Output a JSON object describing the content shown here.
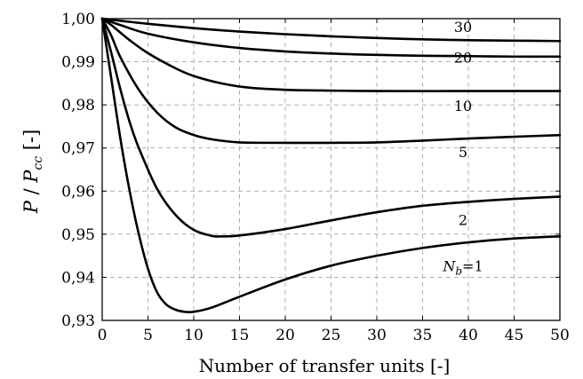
{
  "chart_data": {
    "type": "line",
    "xlabel": "Number of transfer units [-]",
    "ylabel": {
      "main": "P",
      "sep": " / ",
      "sub_base": "P",
      "sub": "cc",
      "unit": " [-]"
    },
    "xlim": [
      0,
      50
    ],
    "ylim": [
      0.93,
      1.0
    ],
    "x_ticks": [
      0,
      5,
      10,
      15,
      20,
      25,
      30,
      35,
      40,
      45,
      50
    ],
    "y_ticks": [
      0.93,
      0.94,
      0.95,
      0.96,
      0.97,
      0.98,
      0.99,
      1.0
    ],
    "y_tick_labels": [
      "0,93",
      "0,94",
      "0,95",
      "0,96",
      "0,97",
      "0,98",
      "0,99",
      "1,00"
    ],
    "grid": true,
    "series": [
      {
        "name": "30",
        "x": [
          0,
          2,
          5,
          10,
          15,
          20,
          25,
          30,
          35,
          40,
          45,
          50
        ],
        "y": [
          1.0,
          0.9995,
          0.9988,
          0.9978,
          0.997,
          0.9964,
          0.9959,
          0.9955,
          0.9952,
          0.995,
          0.9949,
          0.9948
        ]
      },
      {
        "name": "20",
        "x": [
          0,
          2,
          5,
          10,
          15,
          20,
          25,
          30,
          35,
          40,
          45,
          50
        ],
        "y": [
          1.0,
          0.9985,
          0.9965,
          0.9945,
          0.9932,
          0.9924,
          0.9919,
          0.9916,
          0.9914,
          0.9913,
          0.9912,
          0.9912
        ]
      },
      {
        "name": "10",
        "x": [
          0,
          1,
          3,
          5,
          8,
          10,
          13,
          16,
          20,
          25,
          30,
          40,
          50
        ],
        "y": [
          1.0,
          0.9985,
          0.995,
          0.992,
          0.9885,
          0.9867,
          0.985,
          0.984,
          0.9835,
          0.9833,
          0.9832,
          0.9832,
          0.9832
        ]
      },
      {
        "name": "5",
        "x": [
          0,
          1,
          2,
          4,
          6,
          8,
          10,
          12,
          15,
          20,
          25,
          30,
          35,
          40,
          45,
          50
        ],
        "y": [
          1.0,
          0.996,
          0.991,
          0.9835,
          0.9782,
          0.9748,
          0.973,
          0.972,
          0.9713,
          0.9712,
          0.9712,
          0.9713,
          0.9717,
          0.9722,
          0.9726,
          0.973
        ]
      },
      {
        "name": "2",
        "x": [
          0,
          1,
          2,
          3,
          4,
          6,
          8,
          10,
          12,
          13,
          15,
          20,
          25,
          30,
          35,
          40,
          45,
          50
        ],
        "y": [
          1.0,
          0.992,
          0.9835,
          0.976,
          0.97,
          0.9605,
          0.9545,
          0.951,
          0.9496,
          0.9495,
          0.9497,
          0.9512,
          0.9532,
          0.9551,
          0.9566,
          0.9575,
          0.9582,
          0.9587
        ]
      },
      {
        "name": "N_b=1",
        "label": {
          "base": "N",
          "sub": "b",
          "rest": "=1"
        },
        "x": [
          0,
          1,
          2,
          3,
          4,
          5,
          6,
          7,
          8,
          9,
          10,
          12,
          15,
          20,
          25,
          30,
          35,
          40,
          45,
          50
        ],
        "y": [
          1.0,
          0.986,
          0.972,
          0.96,
          0.95,
          0.942,
          0.9365,
          0.9337,
          0.9325,
          0.932,
          0.932,
          0.933,
          0.9355,
          0.9395,
          0.9427,
          0.945,
          0.9468,
          0.9481,
          0.949,
          0.9495
        ]
      }
    ],
    "series_label_positions": [
      {
        "series": 0,
        "x": 40,
        "y": 0.9979
      },
      {
        "series": 1,
        "x": 40,
        "y": 0.9908
      },
      {
        "series": 2,
        "x": 40,
        "y": 0.9796
      },
      {
        "series": 3,
        "x": 40,
        "y": 0.9689
      },
      {
        "series": 4,
        "x": 40,
        "y": 0.9532
      },
      {
        "series": 5,
        "x": 40,
        "y": 0.9425
      }
    ]
  }
}
